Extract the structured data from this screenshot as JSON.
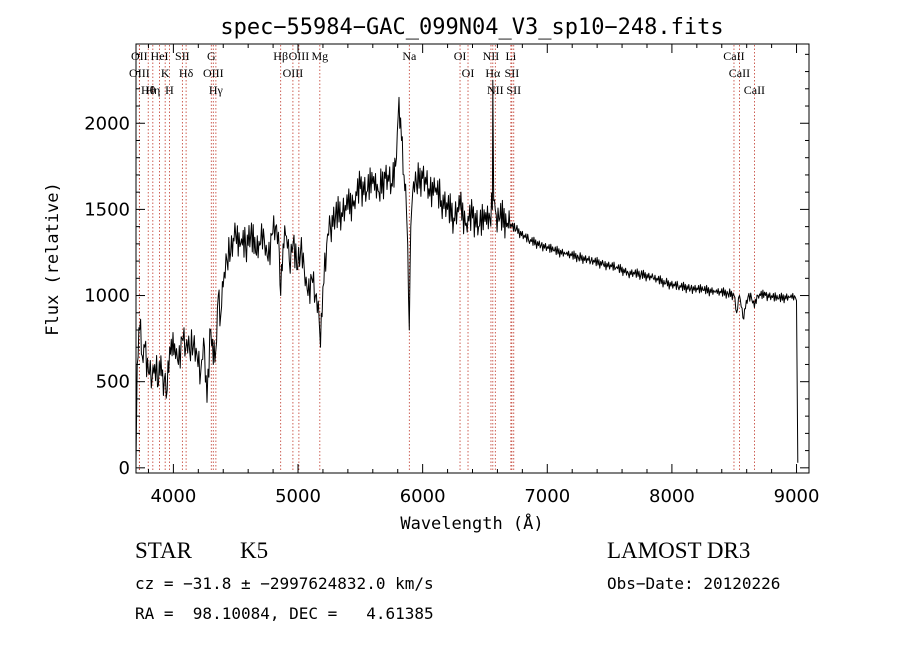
{
  "chart_data": {
    "type": "line",
    "title": "spec−55984−GAC_099N04_V3_sp10−248.fits",
    "xlabel": "Wavelength (Å)",
    "ylabel": "Flux (relative)",
    "xlim": [
      3700,
      9100
    ],
    "ylim": [
      -30,
      2460
    ],
    "xticks": [
      4000,
      5000,
      6000,
      7000,
      8000,
      9000
    ],
    "yticks": [
      0,
      500,
      1000,
      1500,
      2000
    ],
    "grid": false,
    "series": [
      {
        "name": "flux",
        "x": [
          3700,
          3710,
          3730,
          3750,
          3770,
          3800,
          3830,
          3850,
          3880,
          3900,
          3920,
          3935,
          3950,
          3970,
          3990,
          4010,
          4040,
          4070,
          4100,
          4130,
          4160,
          4190,
          4220,
          4250,
          4270,
          4300,
          4320,
          4340,
          4360,
          4380,
          4400,
          4430,
          4460,
          4500,
          4540,
          4580,
          4620,
          4660,
          4700,
          4730,
          4760,
          4790,
          4820,
          4850,
          4861,
          4880,
          4900,
          4930,
          4960,
          4990,
          5020,
          5050,
          5080,
          5110,
          5140,
          5170,
          5180,
          5200,
          5230,
          5260,
          5300,
          5350,
          5400,
          5450,
          5500,
          5550,
          5600,
          5650,
          5700,
          5750,
          5790,
          5810,
          5830,
          5850,
          5870,
          5880,
          5893,
          5905,
          5920,
          5950,
          6000,
          6050,
          6100,
          6150,
          6200,
          6250,
          6300,
          6350,
          6400,
          6450,
          6500,
          6540,
          6560,
          6563,
          6570,
          6590,
          6620,
          6680,
          6750,
          6850,
          6950,
          7050,
          7150,
          7250,
          7350,
          7450,
          7550,
          7650,
          7750,
          7850,
          7950,
          8050,
          8150,
          8250,
          8350,
          8450,
          8498,
          8520,
          8542,
          8570,
          8610,
          8640,
          8662,
          8690,
          8750,
          8850,
          8950,
          8990,
          9000,
          9010
        ],
        "values": [
          20,
          600,
          800,
          650,
          700,
          550,
          520,
          600,
          480,
          650,
          420,
          550,
          450,
          700,
          650,
          720,
          600,
          750,
          700,
          680,
          700,
          650,
          560,
          700,
          380,
          800,
          600,
          680,
          1000,
          880,
          1050,
          1200,
          1250,
          1350,
          1300,
          1280,
          1350,
          1250,
          1300,
          1320,
          1200,
          1350,
          1400,
          1250,
          1000,
          1300,
          1350,
          1200,
          1300,
          1150,
          1250,
          1150,
          1000,
          1100,
          1000,
          850,
          700,
          1050,
          1300,
          1400,
          1450,
          1480,
          1500,
          1550,
          1620,
          1600,
          1650,
          1600,
          1680,
          1650,
          1800,
          2150,
          1900,
          1700,
          1500,
          1300,
          800,
          1400,
          1600,
          1650,
          1680,
          1620,
          1600,
          1550,
          1500,
          1450,
          1500,
          1420,
          1450,
          1400,
          1430,
          1450,
          1500,
          2250,
          1550,
          1470,
          1450,
          1420,
          1380,
          1320,
          1290,
          1260,
          1240,
          1220,
          1200,
          1180,
          1160,
          1130,
          1120,
          1100,
          1070,
          1050,
          1040,
          1030,
          1020,
          1010,
          1000,
          900,
          1000,
          870,
          990,
          980,
          930,
          1000,
          1000,
          980,
          990,
          990,
          970,
          30
        ]
      }
    ],
    "lines": [
      {
        "name": "Hθ",
        "x": 3798
      },
      {
        "name": "OII",
        "x": 3727
      },
      {
        "name": "OIII",
        "x": 3727
      },
      {
        "name": "Hη",
        "x": 3835
      },
      {
        "name": "HeI",
        "x": 3889
      },
      {
        "name": "K",
        "x": 3934
      },
      {
        "name": "H",
        "x": 3968
      },
      {
        "name": "SII",
        "x": 4072
      },
      {
        "name": "Hδ",
        "x": 4102
      },
      {
        "name": "G",
        "x": 4304
      },
      {
        "name": "OIII",
        "x": 4320
      },
      {
        "name": "Hγ",
        "x": 4341
      },
      {
        "name": "Hβ",
        "x": 4861
      },
      {
        "name": "OIII",
        "x": 4959
      },
      {
        "name": "OIII",
        "x": 5007
      },
      {
        "name": "Mg",
        "x": 5175
      },
      {
        "name": "Na",
        "x": 5893
      },
      {
        "name": "OI",
        "x": 6300
      },
      {
        "name": "OI",
        "x": 6364
      },
      {
        "name": "NII",
        "x": 6548
      },
      {
        "name": "Hα",
        "x": 6563
      },
      {
        "name": "NII",
        "x": 6583
      },
      {
        "name": "Li",
        "x": 6708
      },
      {
        "name": "SII",
        "x": 6716
      },
      {
        "name": "SII",
        "x": 6731
      },
      {
        "name": "CaII",
        "x": 8498
      },
      {
        "name": "CaII",
        "x": 8542
      },
      {
        "name": "CaII",
        "x": 8662
      }
    ]
  },
  "colors": {
    "spectrum": "#000000",
    "line_marker": "#c0392b",
    "axes": "#000000",
    "background": "#ffffff"
  },
  "footer": {
    "object_class": "STAR",
    "subclass": "K5",
    "survey": "LAMOST DR3",
    "cz_text": "cz = −31.8 ± −2997624832.0 km/s",
    "obs_date_text": "Obs−Date: 20120226",
    "coords_text": "RA =  98.10084, DEC =   4.61385"
  }
}
